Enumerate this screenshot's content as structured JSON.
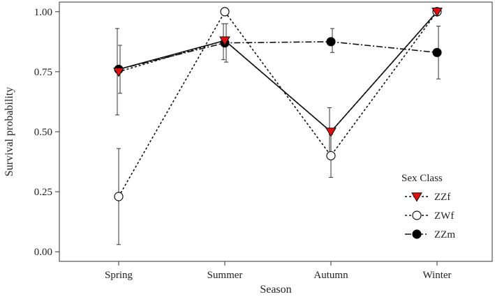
{
  "chart_data": {
    "type": "line",
    "title": "",
    "xlabel": "Season",
    "ylabel": "Survival probability",
    "categories": [
      "Spring",
      "Summer",
      "Autumn",
      "Winter"
    ],
    "ylim": [
      -0.04,
      1.04
    ],
    "yticks": [
      0.0,
      0.25,
      0.5,
      0.75,
      1.0
    ],
    "ytick_labels": [
      "0.00",
      "0.25",
      "0.50",
      "0.75",
      "1.00"
    ],
    "grid": false,
    "legend": {
      "title": "Sex Class",
      "position": "right"
    },
    "series": [
      {
        "name": "ZZf",
        "marker": "triangle-down",
        "marker_fill": "#e01010",
        "line_style": "dotted",
        "values": [
          0.75,
          0.88,
          0.5,
          1.0
        ],
        "error_low": [
          0.57,
          0.8,
          0.4,
          1.0
        ],
        "error_high": [
          0.93,
          0.95,
          0.6,
          1.0
        ]
      },
      {
        "name": "ZWf",
        "marker": "circle-open",
        "marker_fill": "#ffffff",
        "line_style": "dotted",
        "values": [
          0.23,
          1.0,
          0.4,
          1.0
        ],
        "error_low": [
          0.03,
          1.0,
          0.31,
          1.0
        ],
        "error_high": [
          0.43,
          1.0,
          0.49,
          1.0
        ]
      },
      {
        "name": "ZZm",
        "marker": "circle-filled",
        "marker_fill": "#000000",
        "line_style": "dashdot",
        "values": [
          0.76,
          0.87,
          0.875,
          0.83
        ],
        "error_low": [
          0.66,
          0.79,
          0.83,
          0.72
        ],
        "error_high": [
          0.86,
          0.95,
          0.93,
          0.94
        ]
      }
    ],
    "extra_lines": [
      {
        "style": "solid",
        "values": [
          0.76,
          0.88,
          0.5,
          1.0
        ]
      }
    ]
  }
}
